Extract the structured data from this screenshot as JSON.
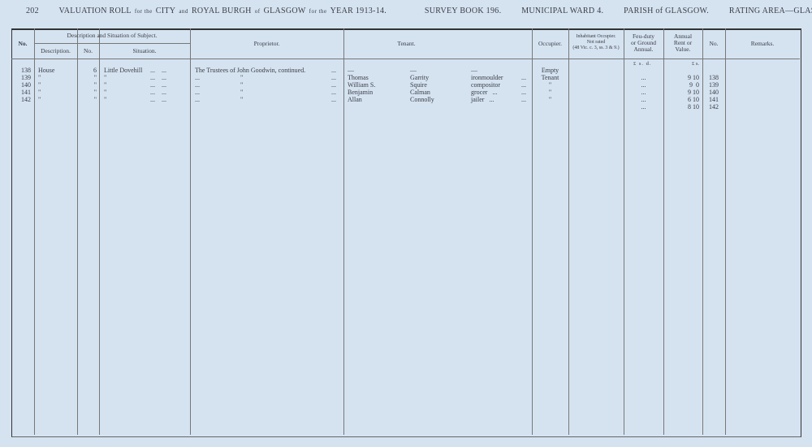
{
  "header": {
    "page_number": "202",
    "title_a": "VALUATION ROLL",
    "title_b": "for the",
    "title_c": "CITY",
    "title_d": "and",
    "title_e": "ROYAL BURGH",
    "title_f": "of",
    "title_g": "GLASGOW",
    "title_h": "for the",
    "title_i": "YEAR 1913-14.",
    "survey_book": "SURVEY BOOK 196.",
    "ward": "MUNICIPAL WARD 4.",
    "parish": "PARISH of GLASGOW.",
    "rating_area": "RATING AREA—GLASGOW."
  },
  "columns": {
    "no": "No.",
    "desc_group": "Description and Situation of Subject.",
    "description": "Description.",
    "house_no": "No.",
    "situation": "Situation.",
    "proprietor": "Proprietor.",
    "tenant": "Tenant.",
    "occupier": "Occupier.",
    "inhabitant_1": "Inhabitant Occupier.",
    "inhabitant_2": "Not rated",
    "inhabitant_3": "(48 Vic. c. 3, ss. 3 & 9.)",
    "feu_1": "Feu-duty",
    "feu_2": "or Ground",
    "feu_3": "Annual.",
    "rent_1": "Annual",
    "rent_2": "Rent or",
    "rent_3": "Value.",
    "no_right": "No.",
    "remarks": "Remarks."
  },
  "units": {
    "feu": "£  s.  d.",
    "rent": "£  s."
  },
  "rows": [
    {
      "no": "138",
      "description": "House",
      "house_no": "6",
      "situation": "Little Dovehill",
      "sit_dots": "...    ...",
      "proprietor": "The Trustees of John Goodwin, continued.",
      "prop_dots": "...",
      "first": "—",
      "surname": "—",
      "occupation": "—",
      "ten_dots": "",
      "occupier": "Empty",
      "feu": "",
      "rent": "",
      "no_right": ""
    },
    {
      "no": "139",
      "description": "\"",
      "house_no": "\"",
      "situation": "\"",
      "sit_dots": "...    ...",
      "proprietor": "...                         \"",
      "prop_dots": "...",
      "first": "Thomas",
      "surname": "Garrity",
      "occupation": "ironmoulder",
      "ten_dots": "...",
      "occupier": "Tenant",
      "feu": "...",
      "rent": "9 10",
      "no_right": "138"
    },
    {
      "no": "140",
      "description": "\"",
      "house_no": "\"",
      "situation": "\"",
      "sit_dots": "...    ...",
      "proprietor": "...                         \"",
      "prop_dots": "...",
      "first": "William S.",
      "surname": "Squire",
      "occupation": "compositor",
      "ten_dots": "...",
      "occupier": "\"",
      "feu": "...",
      "rent": "9  0",
      "no_right": "139"
    },
    {
      "no": "141",
      "description": "\"",
      "house_no": "\"",
      "situation": "\"",
      "sit_dots": "...    ...",
      "proprietor": "...                         \"",
      "prop_dots": "...",
      "first": "Benjamin",
      "surname": "Calman",
      "occupation": "grocer   ...",
      "ten_dots": "...",
      "occupier": "\"",
      "feu": "...",
      "rent": "9 10",
      "no_right": "140"
    },
    {
      "no": "142",
      "description": "\"",
      "house_no": "\"",
      "situation": "\"",
      "sit_dots": "...    ...",
      "proprietor": "...                         \"",
      "prop_dots": "...",
      "first": "Allan",
      "surname": "Connolly",
      "occupation": "jailer   ...",
      "ten_dots": "...",
      "occupier": "\"",
      "feu": "...",
      "rent": "6 10",
      "no_right": "141"
    },
    {
      "no": "",
      "description": "",
      "house_no": "",
      "situation": "",
      "sit_dots": "",
      "proprietor": "",
      "prop_dots": "",
      "first": "",
      "surname": "",
      "occupation": "",
      "ten_dots": "",
      "occupier": "",
      "feu": "...",
      "rent": "8 10",
      "no_right": "142"
    }
  ]
}
